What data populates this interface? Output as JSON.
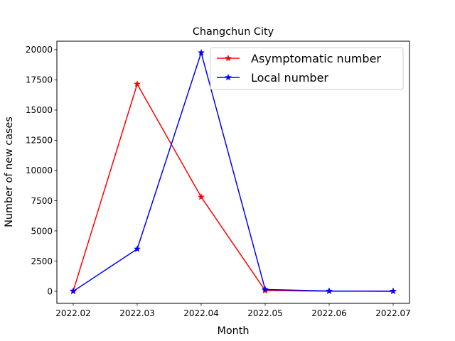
{
  "chart_data": {
    "type": "line",
    "title": "Changchun City",
    "xlabel": "Month",
    "ylabel": "Number of new cases",
    "categories": [
      "2022.02",
      "2022.03",
      "2022.04",
      "2022.05",
      "2022.06",
      "2022.07"
    ],
    "ylim": [
      -1000,
      20700
    ],
    "yticks": [
      0,
      2500,
      5000,
      7500,
      10000,
      12500,
      15000,
      17500,
      20000
    ],
    "grid": false,
    "legend_position": "upper right",
    "series": [
      {
        "name": "Asymptomatic number",
        "color": "#ff0000",
        "marker": "star",
        "values": [
          30,
          17150,
          7800,
          60,
          10,
          0
        ]
      },
      {
        "name": "Local number",
        "color": "#0000ff",
        "marker": "star",
        "values": [
          0,
          3500,
          19750,
          150,
          20,
          10
        ]
      }
    ]
  }
}
